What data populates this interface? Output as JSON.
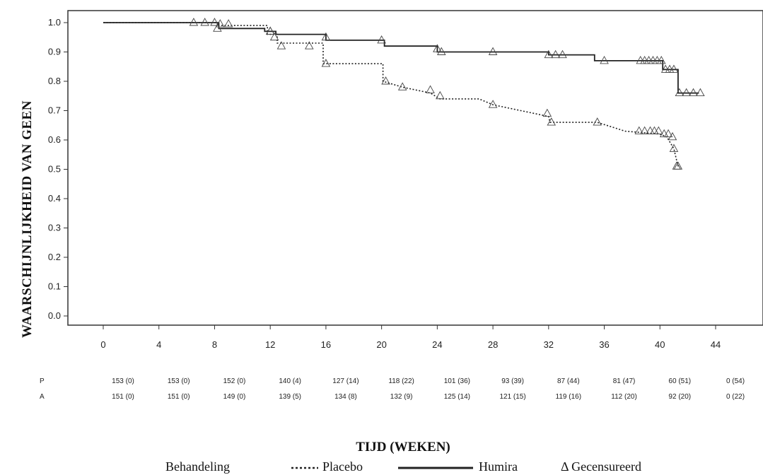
{
  "chart_data": {
    "type": "line",
    "xlabel": "TIJD (WEKEN)",
    "ylabel": "WAARSCHIJNLIJKHEID VAN GEEN",
    "xlim": [
      0,
      44
    ],
    "ylim": [
      0.0,
      1.0
    ],
    "xticks": [
      0,
      4,
      8,
      12,
      16,
      20,
      24,
      28,
      32,
      36,
      40,
      44
    ],
    "yticks": [
      "0.0",
      "0.1",
      "0.2",
      "0.3",
      "0.4",
      "0.5",
      "0.6",
      "0.7",
      "0.8",
      "0.9",
      "1.0"
    ],
    "series": [
      {
        "name": "Placebo",
        "style": "dotted",
        "points": [
          [
            0,
            1.0
          ],
          [
            8.2,
            1.0
          ],
          [
            8.2,
            0.99
          ],
          [
            11.8,
            0.99
          ],
          [
            11.8,
            0.96
          ],
          [
            12.5,
            0.96
          ],
          [
            12.5,
            0.93
          ],
          [
            15.8,
            0.93
          ],
          [
            15.8,
            0.86
          ],
          [
            20.1,
            0.86
          ],
          [
            20.1,
            0.8
          ],
          [
            21.5,
            0.78
          ],
          [
            23.5,
            0.76
          ],
          [
            24.2,
            0.74
          ],
          [
            27,
            0.74
          ],
          [
            28,
            0.72
          ],
          [
            30,
            0.7
          ],
          [
            32,
            0.68
          ],
          [
            32.1,
            0.66
          ],
          [
            35.5,
            0.66
          ],
          [
            37.5,
            0.63
          ],
          [
            40,
            0.62
          ],
          [
            40.5,
            0.61
          ],
          [
            41,
            0.57
          ],
          [
            41.1,
            0.55
          ],
          [
            41.3,
            0.51
          ]
        ],
        "censored": [
          [
            6.5,
            1.0
          ],
          [
            7.3,
            1.0
          ],
          [
            8.0,
            1.0
          ],
          [
            8.4,
            0.995
          ],
          [
            9.0,
            0.995
          ],
          [
            12.0,
            0.97
          ],
          [
            12.3,
            0.95
          ],
          [
            12.8,
            0.92
          ],
          [
            14.8,
            0.92
          ],
          [
            16.0,
            0.86
          ],
          [
            20.3,
            0.8
          ],
          [
            21.5,
            0.78
          ],
          [
            23.5,
            0.77
          ],
          [
            24.2,
            0.75
          ],
          [
            28.0,
            0.72
          ],
          [
            31.9,
            0.69
          ],
          [
            32.2,
            0.66
          ],
          [
            35.5,
            0.66
          ],
          [
            38.5,
            0.63
          ],
          [
            38.9,
            0.63
          ],
          [
            39.3,
            0.63
          ],
          [
            39.6,
            0.63
          ],
          [
            39.9,
            0.63
          ],
          [
            40.3,
            0.62
          ],
          [
            40.6,
            0.62
          ],
          [
            40.9,
            0.61
          ],
          [
            41.0,
            0.57
          ],
          [
            41.2,
            0.51
          ],
          [
            41.3,
            0.51
          ]
        ]
      },
      {
        "name": "Humira",
        "style": "solid",
        "points": [
          [
            0,
            1.0
          ],
          [
            8.3,
            1.0
          ],
          [
            8.3,
            0.98
          ],
          [
            11.6,
            0.98
          ],
          [
            11.6,
            0.97
          ],
          [
            12.4,
            0.97
          ],
          [
            12.4,
            0.96
          ],
          [
            16.0,
            0.96
          ],
          [
            16.0,
            0.94
          ],
          [
            20.2,
            0.94
          ],
          [
            20.2,
            0.92
          ],
          [
            24.0,
            0.92
          ],
          [
            24.0,
            0.9
          ],
          [
            32.0,
            0.9
          ],
          [
            32.0,
            0.89
          ],
          [
            35.3,
            0.89
          ],
          [
            35.3,
            0.87
          ],
          [
            40.2,
            0.87
          ],
          [
            40.2,
            0.84
          ],
          [
            41.3,
            0.84
          ],
          [
            41.3,
            0.76
          ],
          [
            42.8,
            0.76
          ]
        ],
        "censored": [
          [
            8.2,
            0.98
          ],
          [
            12.0,
            0.97
          ],
          [
            16.0,
            0.95
          ],
          [
            20.0,
            0.94
          ],
          [
            24.0,
            0.91
          ],
          [
            24.3,
            0.9
          ],
          [
            28.0,
            0.9
          ],
          [
            32.0,
            0.89
          ],
          [
            32.5,
            0.89
          ],
          [
            33.0,
            0.89
          ],
          [
            36.0,
            0.87
          ],
          [
            38.6,
            0.87
          ],
          [
            38.9,
            0.87
          ],
          [
            39.2,
            0.87
          ],
          [
            39.5,
            0.87
          ],
          [
            39.8,
            0.87
          ],
          [
            40.1,
            0.87
          ],
          [
            40.4,
            0.84
          ],
          [
            40.7,
            0.84
          ],
          [
            41.0,
            0.84
          ],
          [
            41.4,
            0.76
          ],
          [
            41.9,
            0.76
          ],
          [
            42.4,
            0.76
          ],
          [
            42.9,
            0.76
          ]
        ]
      }
    ],
    "risk_table": {
      "rows": [
        {
          "label": "P",
          "values": [
            "153 (0)",
            "153 (0)",
            "152 (0)",
            "140 (4)",
            "127 (14)",
            "118 (22)",
            "101 (36)",
            "93 (39)",
            "87 (44)",
            "81 (47)",
            "60 (51)",
            "0 (54)"
          ]
        },
        {
          "label": "A",
          "values": [
            "151 (0)",
            "151 (0)",
            "149 (0)",
            "139 (5)",
            "134 (8)",
            "132 (9)",
            "125 (14)",
            "121 (15)",
            "119 (16)",
            "112 (20)",
            "92 (20)",
            "0 (22)"
          ]
        }
      ]
    },
    "legend": {
      "title": "Behandeling",
      "items": [
        "Placebo",
        "Humira"
      ],
      "censor_label": "Δ Gecensureerd"
    }
  }
}
